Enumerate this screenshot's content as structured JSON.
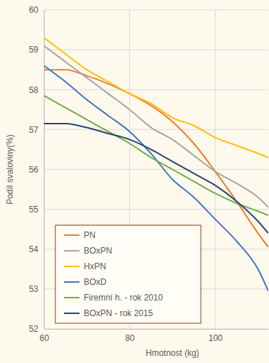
{
  "chart_data": {
    "type": "line",
    "x_label": "Hmotnost (kg)",
    "y_label": "Podíl svaloviny(%)",
    "x": [
      60,
      65,
      70,
      75,
      80,
      85,
      90,
      95,
      100,
      105,
      110,
      112.4
    ],
    "series": [
      {
        "name": "PN",
        "color": "#ed7d31",
        "values": [
          58.5,
          58.5,
          58.35,
          58.15,
          57.9,
          57.6,
          57.2,
          56.65,
          55.95,
          55.2,
          54.4,
          54.05
        ]
      },
      {
        "name": "BOxPN",
        "color": "#a5a5a5",
        "values": [
          59.1,
          58.7,
          58.3,
          57.9,
          57.5,
          57.05,
          56.75,
          56.35,
          55.95,
          55.65,
          55.3,
          55.05
        ]
      },
      {
        "name": "HxPN",
        "color": "#ffc000",
        "values": [
          59.3,
          58.9,
          58.5,
          58.2,
          57.9,
          57.65,
          57.3,
          57.1,
          56.8,
          56.6,
          56.4,
          56.3
        ]
      },
      {
        "name": "BOxD",
        "color": "#4472c4",
        "values": [
          58.6,
          58.2,
          57.75,
          57.35,
          56.95,
          56.4,
          55.75,
          55.3,
          54.75,
          54.2,
          53.5,
          52.95
        ]
      },
      {
        "name": "Firemní h. - rok 2010",
        "color": "#70ad47",
        "values": [
          57.85,
          57.55,
          57.25,
          56.95,
          56.65,
          56.3,
          56.0,
          55.7,
          55.4,
          55.15,
          54.95,
          54.85
        ]
      },
      {
        "name": "BOxPN - rok 2015",
        "color": "#264478",
        "values": [
          57.15,
          57.15,
          57.05,
          56.9,
          56.75,
          56.5,
          56.2,
          55.9,
          55.6,
          55.2,
          54.7,
          54.4
        ]
      }
    ],
    "xlim": [
      60,
      112.4
    ],
    "xticks": [
      60,
      80,
      100
    ],
    "ylim": [
      52,
      60
    ],
    "yticks": [
      52,
      53,
      54,
      55,
      56,
      57,
      58,
      59,
      60
    ],
    "grid": true,
    "legend": "lower left"
  }
}
